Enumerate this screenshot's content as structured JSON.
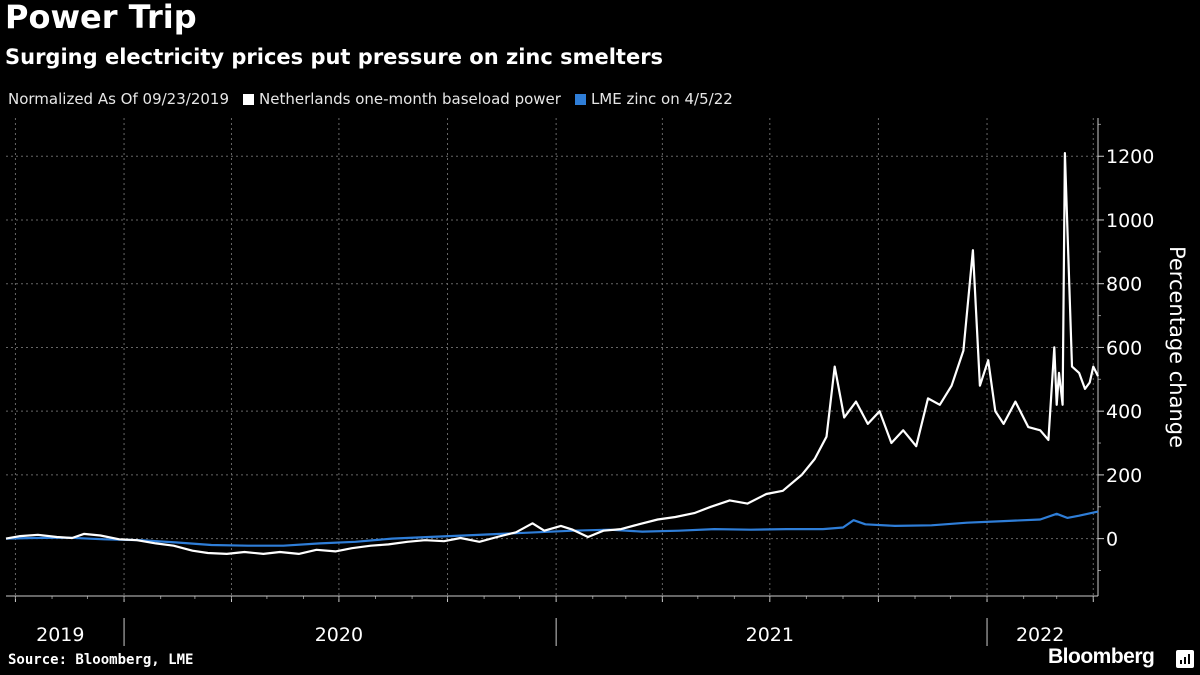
{
  "title": "Power Trip",
  "subtitle": "Surging electricity prices put pressure on zinc smelters",
  "note": "Normalized As Of 09/23/2019",
  "source": "Source: Bloomberg, LME",
  "brand": "Bloomberg",
  "colors": {
    "background": "#000000",
    "power": "#ffffff",
    "zinc": "#2f7ed8",
    "grid": "#666666"
  },
  "chart_data": {
    "type": "line",
    "title": "Power Trip",
    "subtitle": "Surging electricity prices put pressure on zinc smelters",
    "ylabel": "Percentage change",
    "ylim": [
      -180,
      1320
    ],
    "yticks": [
      0,
      200,
      400,
      600,
      800,
      1000,
      1200
    ],
    "xlim": [
      "2019-09-23",
      "2022-04-05"
    ],
    "year_labels": [
      {
        "label": "2019",
        "date": "2019-11-08"
      },
      {
        "label": "2020",
        "date": "2020-07-01"
      },
      {
        "label": "2021",
        "date": "2021-07-01"
      },
      {
        "label": "2022",
        "date": "2022-02-15"
      }
    ],
    "grid": true,
    "legend_position": "top-left",
    "series": [
      {
        "name": "Netherlands one-month baseload power",
        "color": "#ffffff",
        "points": [
          [
            "2019-09-23",
            0
          ],
          [
            "2019-10-05",
            8
          ],
          [
            "2019-10-20",
            12
          ],
          [
            "2019-11-05",
            5
          ],
          [
            "2019-11-18",
            2
          ],
          [
            "2019-11-28",
            15
          ],
          [
            "2019-12-12",
            10
          ],
          [
            "2019-12-28",
            -2
          ],
          [
            "2020-01-12",
            -5
          ],
          [
            "2020-01-28",
            -15
          ],
          [
            "2020-02-12",
            -22
          ],
          [
            "2020-02-28",
            -38
          ],
          [
            "2020-03-12",
            -45
          ],
          [
            "2020-03-28",
            -48
          ],
          [
            "2020-04-12",
            -42
          ],
          [
            "2020-04-28",
            -48
          ],
          [
            "2020-05-12",
            -42
          ],
          [
            "2020-05-28",
            -48
          ],
          [
            "2020-06-12",
            -35
          ],
          [
            "2020-06-28",
            -40
          ],
          [
            "2020-07-12",
            -30
          ],
          [
            "2020-07-28",
            -22
          ],
          [
            "2020-08-12",
            -18
          ],
          [
            "2020-08-28",
            -10
          ],
          [
            "2020-09-12",
            -5
          ],
          [
            "2020-09-28",
            -8
          ],
          [
            "2020-10-12",
            2
          ],
          [
            "2020-10-28",
            -10
          ],
          [
            "2020-11-12",
            5
          ],
          [
            "2020-11-28",
            20
          ],
          [
            "2020-12-12",
            48
          ],
          [
            "2020-12-22",
            25
          ],
          [
            "2021-01-05",
            40
          ],
          [
            "2021-01-15",
            28
          ],
          [
            "2021-01-28",
            5
          ],
          [
            "2021-02-10",
            25
          ],
          [
            "2021-02-25",
            30
          ],
          [
            "2021-03-12",
            45
          ],
          [
            "2021-03-28",
            60
          ],
          [
            "2021-04-12",
            68
          ],
          [
            "2021-04-28",
            80
          ],
          [
            "2021-05-12",
            100
          ],
          [
            "2021-05-28",
            120
          ],
          [
            "2021-06-12",
            110
          ],
          [
            "2021-06-28",
            140
          ],
          [
            "2021-07-12",
            150
          ],
          [
            "2021-07-28",
            200
          ],
          [
            "2021-08-08",
            250
          ],
          [
            "2021-08-18",
            320
          ],
          [
            "2021-08-25",
            540
          ],
          [
            "2021-09-02",
            380
          ],
          [
            "2021-09-12",
            430
          ],
          [
            "2021-09-22",
            360
          ],
          [
            "2021-10-02",
            400
          ],
          [
            "2021-10-12",
            300
          ],
          [
            "2021-10-22",
            340
          ],
          [
            "2021-11-02",
            290
          ],
          [
            "2021-11-12",
            440
          ],
          [
            "2021-11-22",
            420
          ],
          [
            "2021-12-02",
            480
          ],
          [
            "2021-12-12",
            590
          ],
          [
            "2021-12-20",
            905
          ],
          [
            "2021-12-26",
            480
          ],
          [
            "2022-01-02",
            560
          ],
          [
            "2022-01-08",
            400
          ],
          [
            "2022-01-15",
            360
          ],
          [
            "2022-01-25",
            430
          ],
          [
            "2022-02-05",
            350
          ],
          [
            "2022-02-15",
            340
          ],
          [
            "2022-02-22",
            310
          ],
          [
            "2022-02-27",
            600
          ],
          [
            "2022-03-01",
            420
          ],
          [
            "2022-03-03",
            520
          ],
          [
            "2022-03-06",
            420
          ],
          [
            "2022-03-08",
            1210
          ],
          [
            "2022-03-14",
            540
          ],
          [
            "2022-03-20",
            520
          ],
          [
            "2022-03-25",
            470
          ],
          [
            "2022-03-29",
            490
          ],
          [
            "2022-04-01",
            540
          ],
          [
            "2022-04-05",
            510
          ]
        ]
      },
      {
        "name": "LME zinc on 4/5/22",
        "color": "#2f7ed8",
        "points": [
          [
            "2019-09-23",
            0
          ],
          [
            "2019-10-15",
            2
          ],
          [
            "2019-11-15",
            3
          ],
          [
            "2019-12-15",
            -2
          ],
          [
            "2020-01-15",
            -5
          ],
          [
            "2020-02-15",
            -12
          ],
          [
            "2020-03-15",
            -20
          ],
          [
            "2020-04-15",
            -22
          ],
          [
            "2020-05-15",
            -22
          ],
          [
            "2020-06-15",
            -15
          ],
          [
            "2020-07-15",
            -10
          ],
          [
            "2020-08-15",
            0
          ],
          [
            "2020-09-15",
            5
          ],
          [
            "2020-10-15",
            10
          ],
          [
            "2020-11-15",
            15
          ],
          [
            "2020-12-15",
            20
          ],
          [
            "2021-01-15",
            25
          ],
          [
            "2021-02-15",
            28
          ],
          [
            "2021-03-15",
            22
          ],
          [
            "2021-04-15",
            25
          ],
          [
            "2021-05-15",
            30
          ],
          [
            "2021-06-15",
            28
          ],
          [
            "2021-07-15",
            30
          ],
          [
            "2021-08-15",
            30
          ],
          [
            "2021-09-01",
            35
          ],
          [
            "2021-09-10",
            58
          ],
          [
            "2021-09-20",
            45
          ],
          [
            "2021-10-15",
            40
          ],
          [
            "2021-11-15",
            42
          ],
          [
            "2021-12-15",
            50
          ],
          [
            "2022-01-15",
            55
          ],
          [
            "2022-02-15",
            60
          ],
          [
            "2022-03-01",
            78
          ],
          [
            "2022-03-10",
            65
          ],
          [
            "2022-03-20",
            72
          ],
          [
            "2022-04-05",
            85
          ]
        ]
      }
    ]
  }
}
